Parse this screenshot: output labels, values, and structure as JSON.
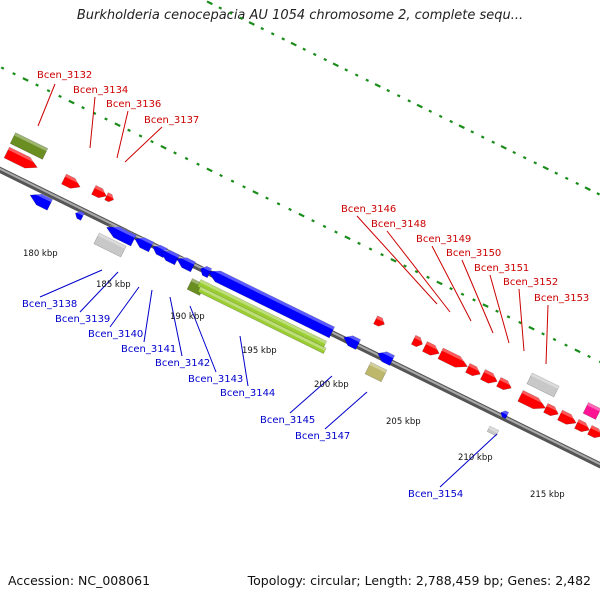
{
  "title": "Burkholderia cenocepacia AU 1054 chromosome 2, complete sequ...",
  "footer": {
    "accession": "Accession: NC_008061",
    "stats": "Topology: circular; Length: 2,788,459 bp; Genes: 2,482"
  },
  "colors": {
    "forward": "#ff0000",
    "reverse": "#0000ff",
    "label_forward": "#cc0000",
    "label_reverse": "#0000cc",
    "backbone": "#888888",
    "ticks": "#1a8c1a",
    "olive": "#6b8e23",
    "lime": "#9acd32",
    "khaki": "#bdb76b",
    "grey": "#c8c8c8",
    "pink": "#ff1493"
  },
  "kbp_labels": [
    "180 kbp",
    "185 kbp",
    "190 kbp",
    "195 kbp",
    "200 kbp",
    "205 kbp",
    "210 kbp",
    "215 kbp"
  ],
  "gene_labels_forward": [
    "Bcen_3132",
    "Bcen_3134",
    "Bcen_3136",
    "Bcen_3137",
    "Bcen_3146",
    "Bcen_3148",
    "Bcen_3149",
    "Bcen_3150",
    "Bcen_3151",
    "Bcen_3152",
    "Bcen_3153"
  ],
  "gene_labels_reverse": [
    "Bcen_3138",
    "Bcen_3139",
    "Bcen_3140",
    "Bcen_3141",
    "Bcen_3142",
    "Bcen_3143",
    "Bcen_3144",
    "Bcen_3145",
    "Bcen_3147",
    "Bcen_3154"
  ]
}
